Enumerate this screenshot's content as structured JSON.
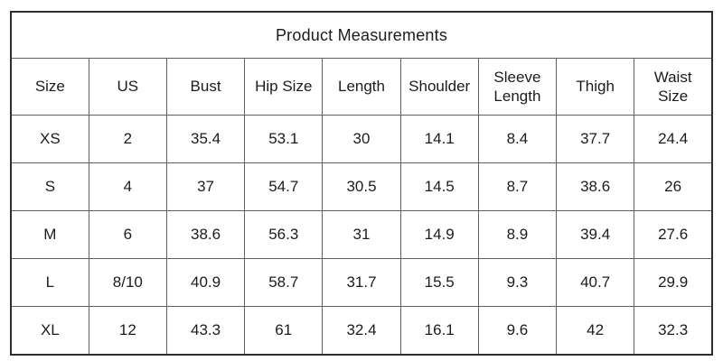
{
  "title": "Product Measurements",
  "colors": {
    "background": "#ffffff",
    "text": "#1c1c1c",
    "outer_border": "#2e2e2e",
    "inner_border": "#5f5f5f"
  },
  "chart_data": {
    "type": "table",
    "title": "Product Measurements",
    "columns": [
      "Size",
      "US",
      "Bust",
      "Hip Size",
      "Length",
      "Shoulder",
      "Sleeve Length",
      "Thigh",
      "Waist Size"
    ],
    "rows": [
      [
        "XS",
        "2",
        "35.4",
        "53.1",
        "30",
        "14.1",
        "8.4",
        "37.7",
        "24.4"
      ],
      [
        "S",
        "4",
        "37",
        "54.7",
        "30.5",
        "14.5",
        "8.7",
        "38.6",
        "26"
      ],
      [
        "M",
        "6",
        "38.6",
        "56.3",
        "31",
        "14.9",
        "8.9",
        "39.4",
        "27.6"
      ],
      [
        "L",
        "8/10",
        "40.9",
        "58.7",
        "31.7",
        "15.5",
        "9.3",
        "40.7",
        "29.9"
      ],
      [
        "XL",
        "12",
        "43.3",
        "61",
        "32.4",
        "16.1",
        "9.6",
        "42",
        "32.3"
      ]
    ]
  }
}
